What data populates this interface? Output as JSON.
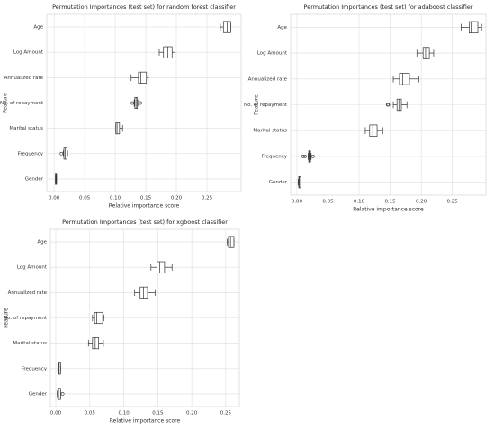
{
  "chart_data": [
    {
      "type": "box",
      "title": "Permutation Importances (test set) for random forest classifier",
      "xlabel": "Relative importance score",
      "ylabel": "Feature",
      "categories": [
        "Age",
        "Log Amount",
        "Annualized rate",
        "No. of repayment",
        "Marital status",
        "Frequency",
        "Gender"
      ],
      "stats": [
        {
          "whislo": 0.272,
          "q1": 0.277,
          "med": 0.283,
          "q3": 0.289,
          "whishi": 0.289,
          "fliers": []
        },
        {
          "whislo": 0.172,
          "q1": 0.179,
          "med": 0.186,
          "q3": 0.193,
          "whishi": 0.198,
          "fliers": []
        },
        {
          "whislo": 0.126,
          "q1": 0.138,
          "med": 0.142,
          "q3": 0.151,
          "whishi": 0.154,
          "fliers": []
        },
        {
          "whislo": 0.131,
          "q1": 0.132,
          "med": 0.134,
          "q3": 0.136,
          "whishi": 0.137,
          "fliers": [
            0.128,
            0.141
          ]
        },
        {
          "whislo": 0.101,
          "q1": 0.101,
          "med": 0.103,
          "q3": 0.107,
          "whishi": 0.112,
          "fliers": []
        },
        {
          "whislo": 0.015,
          "q1": 0.016,
          "med": 0.018,
          "q3": 0.021,
          "whishi": 0.022,
          "fliers": [
            0.012
          ]
        },
        {
          "whislo": 0.002,
          "q1": 0.002,
          "med": 0.003,
          "q3": 0.004,
          "whishi": 0.004,
          "fliers": []
        }
      ],
      "xlim": [
        -0.012,
        0.306
      ],
      "xticks": [
        {
          "value": 0,
          "label": "0.00"
        },
        0.05,
        {
          "value": 0.1,
          "label": "0.10"
        },
        0.15,
        {
          "value": 0.2,
          "label": "0.20"
        },
        0.25
      ],
      "grid": true,
      "color": "#ffffff"
    },
    {
      "type": "box",
      "title": "Permutation Importances (test set) for adaboost classifier",
      "xlabel": "Relative importance score",
      "ylabel": "Feature",
      "categories": [
        "Age",
        "Log Amount",
        "Annualized rate",
        "No. of repayment",
        "Marital status",
        "Frequency",
        "Gender"
      ],
      "stats": [
        {
          "whislo": 0.264,
          "q1": 0.277,
          "med": 0.28,
          "q3": 0.291,
          "whishi": 0.297,
          "fliers": []
        },
        {
          "whislo": 0.193,
          "q1": 0.203,
          "med": 0.207,
          "q3": 0.213,
          "whishi": 0.22,
          "fliers": []
        },
        {
          "whislo": 0.155,
          "q1": 0.165,
          "med": 0.17,
          "q3": 0.181,
          "whishi": 0.196,
          "fliers": []
        },
        {
          "whislo": 0.155,
          "q1": 0.161,
          "med": 0.164,
          "q3": 0.168,
          "whishi": 0.177,
          "fliers": [
            0.146,
            0.147
          ]
        },
        {
          "whislo": 0.11,
          "q1": 0.117,
          "med": 0.122,
          "q3": 0.129,
          "whishi": 0.138,
          "fliers": []
        },
        {
          "whislo": 0.018,
          "q1": 0.019,
          "med": 0.02,
          "q3": 0.022,
          "whishi": 0.023,
          "fliers": [
            0.01,
            0.013,
            0.026
          ]
        },
        {
          "whislo": 0.002,
          "q1": 0.003,
          "med": 0.004,
          "q3": 0.006,
          "whishi": 0.006,
          "fliers": []
        }
      ],
      "xlim": [
        -0.01,
        0.304
      ],
      "xticks": [
        {
          "value": 0,
          "label": "0.00"
        },
        0.05,
        {
          "value": 0.1,
          "label": "0.10"
        },
        0.15,
        {
          "value": 0.2,
          "label": "0.20"
        },
        0.25
      ],
      "grid": true,
      "color": "#ffffff"
    },
    {
      "type": "box",
      "title": "Permutation Importances (test set) for xgboost classifier",
      "xlabel": "Relative importance score",
      "ylabel": "Feature",
      "categories": [
        "Age",
        "Log Amount",
        "Annualized rate",
        "No. of repayment",
        "Marital status",
        "Frequency",
        "Gender"
      ],
      "stats": [
        {
          "whislo": 0.252,
          "q1": 0.254,
          "med": 0.257,
          "q3": 0.262,
          "whishi": 0.262,
          "fliers": []
        },
        {
          "whislo": 0.14,
          "q1": 0.149,
          "med": 0.153,
          "q3": 0.16,
          "whishi": 0.171,
          "fliers": []
        },
        {
          "whislo": 0.116,
          "q1": 0.124,
          "med": 0.129,
          "q3": 0.135,
          "whishi": 0.146,
          "fliers": []
        },
        {
          "whislo": 0.054,
          "q1": 0.057,
          "med": 0.06,
          "q3": 0.069,
          "whishi": 0.071,
          "fliers": []
        },
        {
          "whislo": 0.048,
          "q1": 0.054,
          "med": 0.058,
          "q3": 0.063,
          "whishi": 0.07,
          "fliers": []
        },
        {
          "whislo": 0.003,
          "q1": 0.004,
          "med": 0.005,
          "q3": 0.007,
          "whishi": 0.007,
          "fliers": []
        },
        {
          "whislo": 0.002,
          "q1": 0.003,
          "med": 0.004,
          "q3": 0.007,
          "whishi": 0.007,
          "fliers": [
            0.01
          ]
        }
      ],
      "xlim": [
        -0.008,
        0.27
      ],
      "xticks": [
        {
          "value": 0,
          "label": "0.00"
        },
        0.05,
        {
          "value": 0.1,
          "label": "0.10"
        },
        0.15,
        {
          "value": 0.2,
          "label": "0.20"
        },
        0.25
      ],
      "grid": true,
      "color": "#ffffff"
    }
  ]
}
